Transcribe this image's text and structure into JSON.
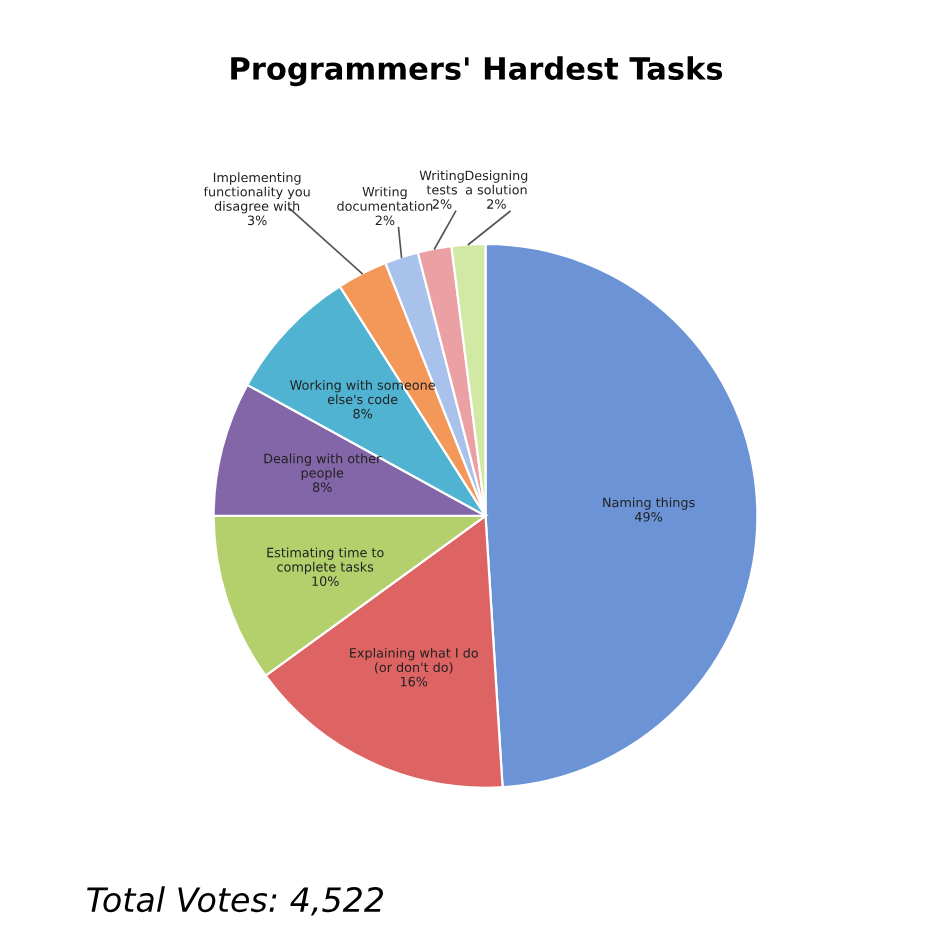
{
  "chart_data": {
    "type": "pie",
    "title": "Programmers' Hardest Tasks",
    "categories": [
      "Naming things",
      "Explaining what I do (or don't do)",
      "Estimating time to complete tasks",
      "Dealing with other people",
      "Working with someone else's code",
      "Implementing functionality you disagree with",
      "Writing documentation",
      "Writing tests",
      "Designing a solution"
    ],
    "values": [
      49,
      16,
      10,
      8,
      8,
      3,
      2,
      2,
      2
    ],
    "value_labels": [
      "49%",
      "16%",
      "10%",
      "8%",
      "8%",
      "3%",
      "2%",
      "2%",
      "2%"
    ],
    "colors": [
      "#6b93d6",
      "#de6463",
      "#b4d06c",
      "#8366a8",
      "#4fb3d1",
      "#f4985a",
      "#a9c2ec",
      "#eba1a4",
      "#d2e9a6"
    ],
    "annotations": [
      "Total Votes: 4,522"
    ]
  }
}
